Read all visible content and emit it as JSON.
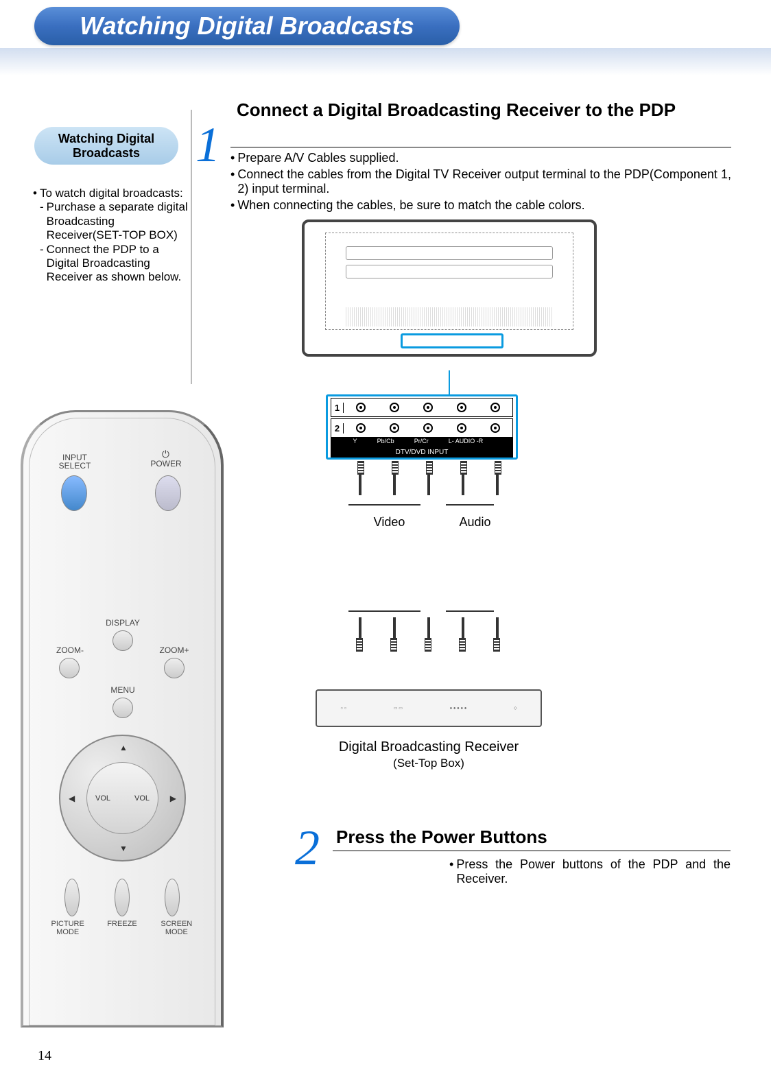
{
  "page_number": "14",
  "colors": {
    "banner_gradient_top": "#5a8fd8",
    "banner_gradient_bottom": "#2a5fa8",
    "step_number": "#0a6fd8",
    "highlight_border": "#0a9be0",
    "pill_top": "#cde4f5",
    "pill_bottom": "#a8cce8"
  },
  "title": "Watching Digital Broadcasts",
  "sidebar": {
    "pill_title": "Watching Digital Broadcasts",
    "intro": "To watch digital broadcasts:",
    "items": [
      "Purchase a separate digital Broadcasting Receiver(SET-TOP BOX)",
      "Connect the PDP to a Digital Broadcasting Receiver as shown below."
    ]
  },
  "step1": {
    "number": "1",
    "title": "Connect a Digital Broadcasting Receiver to the PDP",
    "bullets": [
      "Prepare A/V Cables supplied.",
      "Connect the cables from the Digital TV Receiver output terminal to the PDP(Component 1, 2) input terminal.",
      "When connecting the cables, be sure to match the cable colors."
    ]
  },
  "connector": {
    "row1": "1",
    "row2": "2",
    "labels": [
      "Y",
      "Pb/Cb",
      "Pr/Cr",
      "L- AUDIO -R",
      ""
    ],
    "bottom": "DTV/DVD INPUT"
  },
  "cable_labels": {
    "video": "Video",
    "audio": "Audio"
  },
  "settop": {
    "caption": "Digital Broadcasting Receiver",
    "sub": "(Set-Top Box)"
  },
  "step2": {
    "number": "2",
    "title": "Press the Power Buttons",
    "body": "Press the Power buttons of the PDP and the Receiver."
  },
  "remote": {
    "input_select": "INPUT SELECT",
    "power": "POWER",
    "display": "DISPLAY",
    "zoom_minus": "ZOOM-",
    "zoom_plus": "ZOOM+",
    "menu": "MENU",
    "vol_left": "VOL",
    "vol_right": "VOL",
    "picture_mode": "PICTURE MODE",
    "freeze": "FREEZE",
    "screen_mode": "SCREEN MODE"
  }
}
